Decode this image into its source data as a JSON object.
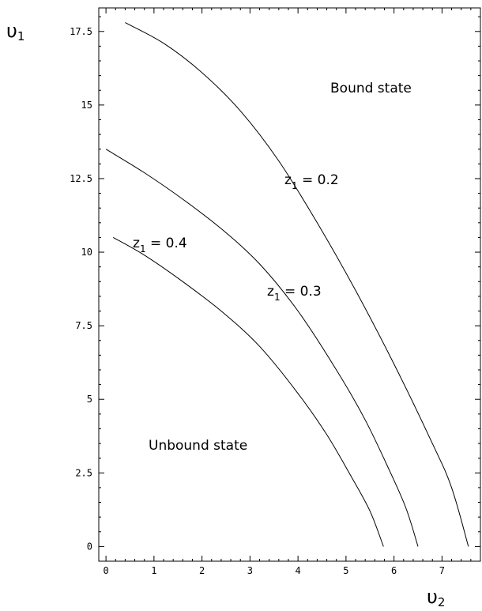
{
  "chart_data": {
    "type": "line",
    "xlabel": {
      "symbol": "υ",
      "subscript": "2"
    },
    "ylabel": {
      "symbol": "υ",
      "subscript": "1"
    },
    "xlim": [
      -0.15,
      7.8
    ],
    "ylim": [
      -0.5,
      18.3
    ],
    "x_ticks": [
      "0",
      "1",
      "2",
      "3",
      "4",
      "5",
      "6",
      "7"
    ],
    "y_ticks": [
      "0",
      "2.5",
      "5",
      "7.5",
      "10",
      "12.5",
      "15",
      "17.5"
    ],
    "grid": false,
    "series": [
      {
        "name": "z1 = 0.2",
        "x": [
          0.4,
          1.2,
          2.0,
          2.8,
          3.6,
          4.4,
          5.2,
          6.0,
          6.8,
          7.2,
          7.55
        ],
        "y": [
          17.8,
          17.1,
          16.1,
          14.8,
          13.1,
          11.0,
          8.7,
          6.2,
          3.5,
          2.0,
          0
        ]
      },
      {
        "name": "z1 = 0.3",
        "x": [
          0.0,
          0.8,
          1.6,
          2.4,
          3.2,
          4.0,
          4.8,
          5.4,
          5.9,
          6.25,
          6.5
        ],
        "y": [
          13.5,
          12.7,
          11.8,
          10.8,
          9.6,
          8.0,
          6.0,
          4.3,
          2.6,
          1.3,
          0
        ]
      },
      {
        "name": "z1 = 0.4",
        "x": [
          0.15,
          0.8,
          1.6,
          2.4,
          3.2,
          4.0,
          4.6,
          5.1,
          5.5,
          5.78
        ],
        "y": [
          10.5,
          9.9,
          9.0,
          8.0,
          6.8,
          5.2,
          3.8,
          2.4,
          1.2,
          0
        ]
      }
    ],
    "annotations": [
      {
        "id": "bound",
        "text": "Bound state"
      },
      {
        "id": "unbound",
        "text": "Unbound state"
      },
      {
        "id": "z02",
        "var": "z",
        "sub": "1",
        "rest": " = 0.2"
      },
      {
        "id": "z03",
        "var": "z",
        "sub": "1",
        "rest": " = 0.3"
      },
      {
        "id": "z04",
        "var": "z",
        "sub": "1",
        "rest": " = 0.4"
      }
    ]
  }
}
